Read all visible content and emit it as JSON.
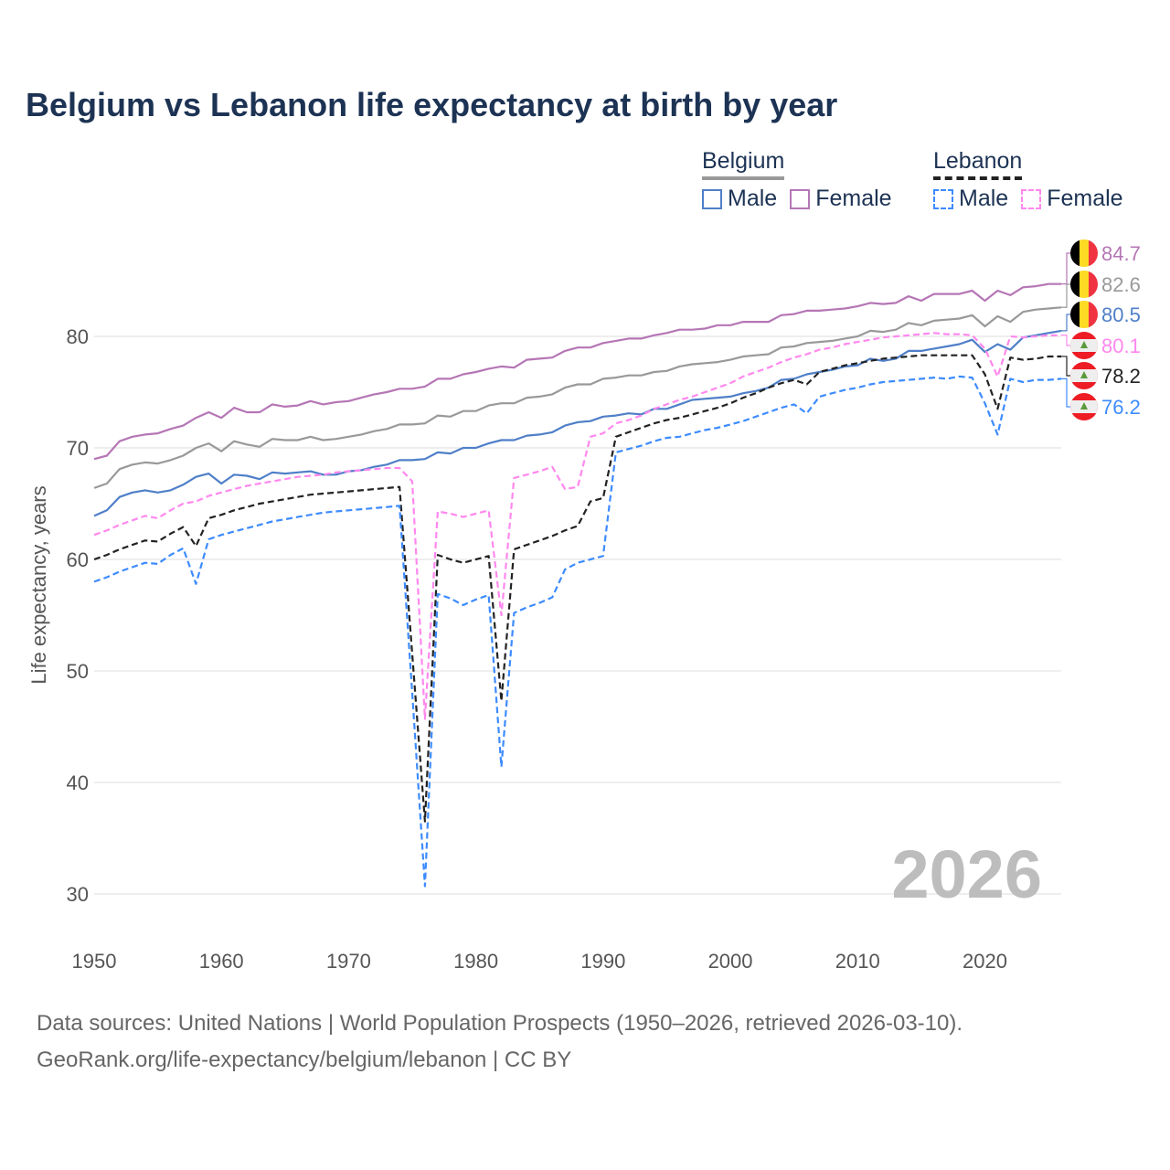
{
  "title": "Belgium vs Lebanon life expectancy at birth by year",
  "legend": {
    "groups": [
      {
        "name": "Belgium",
        "items": [
          "Male",
          "Female"
        ]
      },
      {
        "name": "Lebanon",
        "items": [
          "Male",
          "Female"
        ]
      }
    ]
  },
  "year_watermark": "2026",
  "footer": {
    "line1": "Data sources: United Nations | World Population Prospects (1950–2026, retrieved 2026-03-10).",
    "line2": "GeoRank.org/life-expectancy/belgium/lebanon | CC BY"
  },
  "chart_data": {
    "type": "line",
    "title": "Belgium vs Lebanon life expectancy at birth by year",
    "xlabel": "",
    "ylabel": "Life expectancy, years",
    "x_start": 1950,
    "x_end": 2026,
    "xlim": [
      1950,
      2026
    ],
    "ylim": [
      28,
      87
    ],
    "xticks": [
      1950,
      1960,
      1970,
      1980,
      1990,
      2000,
      2010,
      2020
    ],
    "yticks": [
      30,
      40,
      50,
      60,
      70,
      80
    ],
    "grid": true,
    "legend_position": "top-right",
    "series": [
      {
        "name": "Belgium Female",
        "country": "Belgium",
        "flag": "belgium",
        "color": "#b576b5",
        "dash": false,
        "end_label": "84.7",
        "values": [
          69.0,
          69.3,
          70.6,
          71.0,
          71.2,
          71.3,
          71.7,
          72.0,
          72.7,
          73.2,
          72.7,
          73.6,
          73.2,
          73.2,
          73.9,
          73.7,
          73.8,
          74.2,
          73.9,
          74.1,
          74.2,
          74.5,
          74.8,
          75.0,
          75.3,
          75.3,
          75.5,
          76.2,
          76.2,
          76.6,
          76.8,
          77.1,
          77.3,
          77.2,
          77.9,
          78.0,
          78.1,
          78.7,
          79.0,
          79.0,
          79.4,
          79.6,
          79.8,
          79.8,
          80.1,
          80.3,
          80.6,
          80.6,
          80.7,
          81.0,
          81.0,
          81.3,
          81.3,
          81.3,
          81.9,
          82.0,
          82.3,
          82.3,
          82.4,
          82.5,
          82.7,
          83.0,
          82.9,
          83.0,
          83.6,
          83.2,
          83.8,
          83.8,
          83.8,
          84.1,
          83.2,
          84.1,
          83.7,
          84.4,
          84.5,
          84.7,
          84.7
        ]
      },
      {
        "name": "Belgium Total",
        "country": "Belgium",
        "flag": "belgium",
        "color": "#999999",
        "dash": false,
        "end_label": "82.6",
        "values": [
          66.4,
          66.8,
          68.1,
          68.5,
          68.7,
          68.6,
          68.9,
          69.3,
          70.0,
          70.4,
          69.7,
          70.6,
          70.3,
          70.1,
          70.8,
          70.7,
          70.7,
          71.0,
          70.7,
          70.8,
          71.0,
          71.2,
          71.5,
          71.7,
          72.1,
          72.1,
          72.2,
          72.9,
          72.8,
          73.3,
          73.3,
          73.8,
          74.0,
          74.0,
          74.5,
          74.6,
          74.8,
          75.4,
          75.7,
          75.7,
          76.2,
          76.3,
          76.5,
          76.5,
          76.8,
          76.9,
          77.3,
          77.5,
          77.6,
          77.7,
          77.9,
          78.2,
          78.3,
          78.4,
          79.0,
          79.1,
          79.4,
          79.5,
          79.6,
          79.8,
          80.0,
          80.5,
          80.4,
          80.6,
          81.2,
          81.0,
          81.4,
          81.5,
          81.6,
          81.9,
          80.9,
          81.8,
          81.3,
          82.2,
          82.4,
          82.5,
          82.6
        ]
      },
      {
        "name": "Belgium Male",
        "country": "Belgium",
        "flag": "belgium",
        "color": "#4f7fc8",
        "dash": false,
        "end_label": "80.5",
        "values": [
          63.9,
          64.4,
          65.6,
          66.0,
          66.2,
          66.0,
          66.2,
          66.7,
          67.4,
          67.7,
          66.8,
          67.6,
          67.5,
          67.2,
          67.8,
          67.7,
          67.8,
          67.9,
          67.6,
          67.6,
          67.9,
          68.0,
          68.3,
          68.5,
          68.9,
          68.9,
          69.0,
          69.6,
          69.5,
          70.0,
          70.0,
          70.4,
          70.7,
          70.7,
          71.1,
          71.2,
          71.4,
          72.0,
          72.3,
          72.4,
          72.8,
          72.9,
          73.1,
          73.0,
          73.5,
          73.5,
          73.9,
          74.3,
          74.4,
          74.5,
          74.6,
          74.9,
          75.1,
          75.4,
          76.1,
          76.2,
          76.6,
          76.8,
          77.0,
          77.3,
          77.4,
          78.0,
          77.8,
          78.0,
          78.7,
          78.7,
          78.9,
          79.1,
          79.3,
          79.7,
          78.6,
          79.3,
          78.8,
          79.9,
          80.1,
          80.3,
          80.5
        ]
      },
      {
        "name": "Lebanon Female",
        "country": "Lebanon",
        "flag": "lebanon",
        "color": "#ff88ee",
        "dash": true,
        "end_label": "80.1",
        "values": [
          62.2,
          62.6,
          63.1,
          63.5,
          63.9,
          63.7,
          64.4,
          65.0,
          65.2,
          65.7,
          66.0,
          66.3,
          66.6,
          66.8,
          67.0,
          67.2,
          67.4,
          67.5,
          67.6,
          67.8,
          67.9,
          68.0,
          68.1,
          68.2,
          68.2,
          67.0,
          45.7,
          64.3,
          64.1,
          63.8,
          64.1,
          64.4,
          55.0,
          67.3,
          67.6,
          67.9,
          68.3,
          66.3,
          66.5,
          71.0,
          71.3,
          72.2,
          72.5,
          72.9,
          73.5,
          73.9,
          74.3,
          74.6,
          75.0,
          75.4,
          75.8,
          76.4,
          76.8,
          77.2,
          77.7,
          78.1,
          78.4,
          78.8,
          79.0,
          79.3,
          79.5,
          79.7,
          79.9,
          80.0,
          80.1,
          80.2,
          80.3,
          80.2,
          80.2,
          80.1,
          78.9,
          76.4,
          80.0,
          79.9,
          80.0,
          80.1,
          80.1
        ]
      },
      {
        "name": "Lebanon Total",
        "country": "Lebanon",
        "flag": "lebanon",
        "color": "#222222",
        "dash": true,
        "end_label": "78.2",
        "values": [
          60.0,
          60.4,
          60.9,
          61.3,
          61.7,
          61.6,
          62.3,
          62.9,
          61.2,
          63.7,
          64.0,
          64.4,
          64.7,
          65.0,
          65.2,
          65.4,
          65.6,
          65.8,
          65.9,
          66.0,
          66.1,
          66.2,
          66.3,
          66.4,
          66.5,
          51.5,
          36.5,
          60.4,
          60.0,
          59.7,
          60.0,
          60.3,
          47.3,
          60.9,
          61.3,
          61.7,
          62.1,
          62.6,
          63.0,
          65.2,
          65.5,
          71.0,
          71.4,
          71.8,
          72.2,
          72.5,
          72.7,
          73.0,
          73.3,
          73.6,
          74.0,
          74.5,
          74.9,
          75.4,
          75.8,
          76.1,
          75.7,
          76.8,
          77.1,
          77.4,
          77.6,
          77.8,
          78.0,
          78.1,
          78.2,
          78.3,
          78.3,
          78.3,
          78.3,
          78.3,
          76.6,
          73.5,
          78.1,
          77.9,
          78.0,
          78.2,
          78.2
        ]
      },
      {
        "name": "Lebanon Male",
        "country": "Lebanon",
        "flag": "lebanon",
        "color": "#3d8bff",
        "dash": true,
        "end_label": "76.2",
        "values": [
          58.0,
          58.4,
          58.9,
          59.3,
          59.7,
          59.6,
          60.4,
          61.0,
          57.8,
          61.8,
          62.2,
          62.5,
          62.8,
          63.1,
          63.4,
          63.6,
          63.8,
          64.0,
          64.2,
          64.3,
          64.4,
          64.5,
          64.6,
          64.7,
          64.8,
          48.0,
          30.7,
          56.9,
          56.5,
          55.9,
          56.4,
          56.8,
          41.4,
          55.2,
          55.7,
          56.1,
          56.6,
          59.1,
          59.7,
          60.0,
          60.3,
          69.6,
          69.9,
          70.2,
          70.6,
          70.9,
          71.0,
          71.3,
          71.6,
          71.8,
          72.1,
          72.4,
          72.8,
          73.2,
          73.6,
          73.9,
          73.1,
          74.6,
          74.9,
          75.2,
          75.4,
          75.7,
          75.9,
          76.0,
          76.1,
          76.2,
          76.3,
          76.2,
          76.4,
          76.3,
          74.0,
          71.2,
          76.2,
          75.9,
          76.1,
          76.1,
          76.2
        ]
      }
    ]
  }
}
